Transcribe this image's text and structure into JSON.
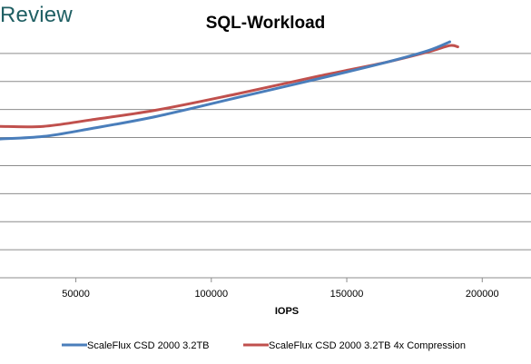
{
  "brand": {
    "text": "Review",
    "color": "#1f5f63"
  },
  "chart_data": {
    "type": "line",
    "title": "SQL-Workload",
    "xlabel": "IOPS",
    "ylabel": "",
    "xlim": [
      22000,
      218000
    ],
    "ylim": [
      0,
      10
    ],
    "xticks": [
      50000,
      100000,
      150000,
      200000
    ],
    "xtick_labels": [
      "50000",
      "100000",
      "150000",
      "200000"
    ],
    "grid": "horizontal",
    "grid_count": 9,
    "legend_position": "bottom",
    "series": [
      {
        "name": "ScaleFlux CSD 2000 3.2TB",
        "color": "#4a7ebb",
        "x": [
          22000,
          38000,
          55000,
          80000,
          110000,
          140000,
          165000,
          180000,
          188000
        ],
        "y": [
          5.5,
          5.6,
          5.9,
          6.4,
          7.15,
          7.9,
          8.55,
          9.0,
          9.35
        ]
      },
      {
        "name": "ScaleFlux CSD 2000 3.2TB 4x Compression",
        "color": "#c0504d",
        "x": [
          22000,
          38000,
          55000,
          80000,
          110000,
          140000,
          165000,
          180000,
          188000,
          191000
        ],
        "y": [
          6.0,
          6.0,
          6.25,
          6.65,
          7.3,
          8.0,
          8.55,
          8.95,
          9.2,
          9.15
        ]
      }
    ]
  }
}
